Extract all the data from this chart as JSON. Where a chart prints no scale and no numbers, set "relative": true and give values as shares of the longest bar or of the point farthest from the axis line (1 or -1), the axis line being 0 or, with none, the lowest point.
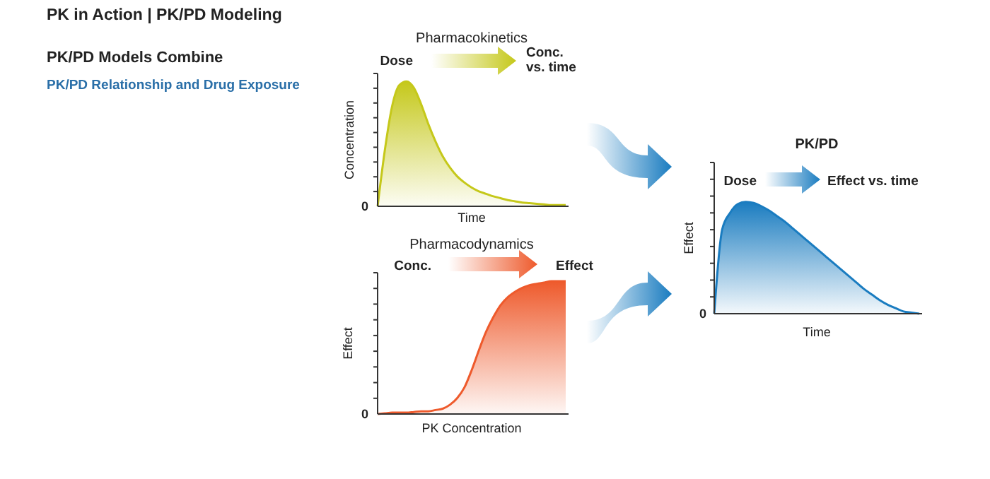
{
  "chart_data": [
    {
      "type": "other",
      "title": "PK in Action | PK/PD Modeling",
      "subtitle": "PK/PD Models Combine",
      "annotations": [
        "PK/PD Relationship and Drug Exposure"
      ]
    },
    {
      "type": "area",
      "title": "Pharmacokinetics",
      "xlabel": "Time",
      "ylabel": "Concentration",
      "relative": true,
      "annotations": [
        "Dose",
        "Conc. vs. time",
        "0"
      ],
      "categories": [
        null,
        null,
        null,
        null,
        null,
        null,
        null,
        null,
        null,
        null,
        null,
        null,
        null,
        null,
        null,
        null,
        null,
        null,
        null,
        null,
        null,
        null,
        null,
        null,
        null,
        null,
        null
      ],
      "series": [
        {
          "color": "#c5c81a",
          "values": [
            0,
            0.45,
            0.8,
            0.97,
            1,
            0.95,
            0.82,
            0.66,
            0.52,
            0.4,
            0.31,
            0.24,
            0.19,
            0.15,
            0.12,
            0.1,
            0.08,
            0.065,
            0.05,
            0.04,
            0.03,
            0.025,
            0.02,
            0.015,
            0.01,
            0.01,
            0.01
          ]
        }
      ]
    },
    {
      "type": "area",
      "title": "Pharmacodynamics",
      "xlabel": "PK Concentration",
      "ylabel": "Effect",
      "relative": true,
      "annotations": [
        "Conc.",
        "Effect",
        "0"
      ],
      "categories": [
        null,
        null,
        null,
        null,
        null,
        null,
        null,
        null,
        null,
        null,
        null,
        null,
        null,
        null,
        null,
        null,
        null,
        null,
        null,
        null,
        null,
        null,
        null,
        null,
        null,
        null,
        null
      ],
      "series": [
        {
          "color": "#ee5a2c",
          "values": [
            0,
            0.005,
            0.01,
            0.01,
            0.01,
            0.015,
            0.02,
            0.02,
            0.03,
            0.04,
            0.07,
            0.12,
            0.2,
            0.33,
            0.48,
            0.62,
            0.73,
            0.82,
            0.88,
            0.92,
            0.95,
            0.97,
            0.98,
            0.99,
            1,
            1,
            1
          ]
        }
      ]
    },
    {
      "type": "area",
      "title": "PK/PD",
      "xlabel": "Time",
      "ylabel": "Effect",
      "relative": true,
      "annotations": [
        "Dose",
        "Effect vs. time",
        "0"
      ],
      "categories": [
        null,
        null,
        null,
        null,
        null,
        null,
        null,
        null,
        null,
        null,
        null,
        null,
        null,
        null,
        null,
        null,
        null,
        null,
        null,
        null,
        null,
        null,
        null,
        null,
        null,
        null,
        null
      ],
      "series": [
        {
          "color": "#1a7cc0",
          "values": [
            0,
            0.75,
            0.9,
            0.98,
            1,
            0.99,
            0.96,
            0.92,
            0.87,
            0.82,
            0.76,
            0.7,
            0.64,
            0.58,
            0.52,
            0.46,
            0.4,
            0.34,
            0.28,
            0.22,
            0.17,
            0.12,
            0.08,
            0.05,
            0.02,
            0.01,
            0
          ]
        }
      ]
    }
  ]
}
